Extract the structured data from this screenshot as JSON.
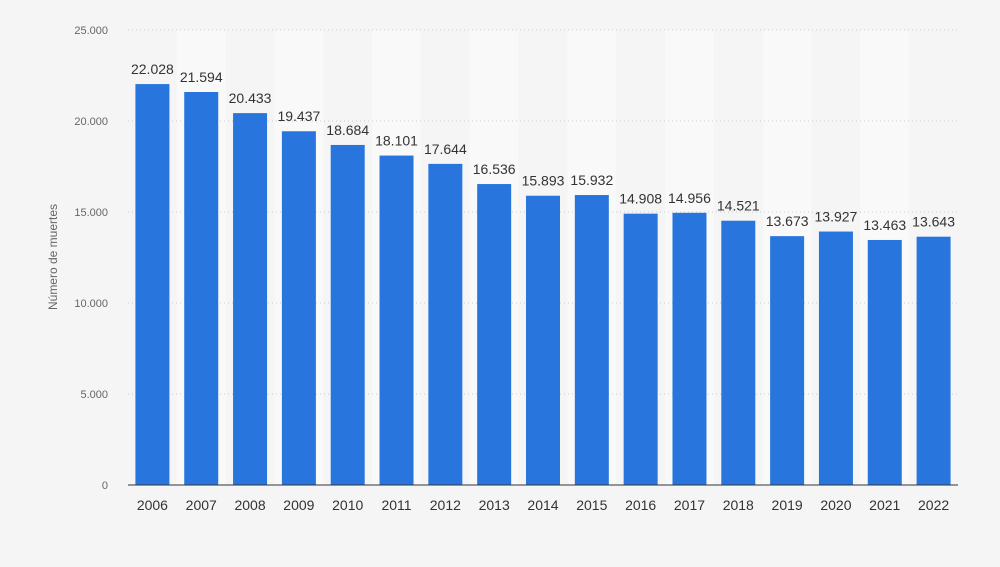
{
  "chart_data": {
    "type": "bar",
    "categories": [
      "2006",
      "2007",
      "2008",
      "2009",
      "2010",
      "2011",
      "2012",
      "2013",
      "2014",
      "2015",
      "2016",
      "2017",
      "2018",
      "2019",
      "2020",
      "2021",
      "2022"
    ],
    "values": [
      22028,
      21594,
      20433,
      19437,
      18684,
      18101,
      17644,
      16536,
      15893,
      15932,
      14908,
      14956,
      14521,
      13673,
      13927,
      13463,
      13643
    ],
    "value_labels": [
      "22.028",
      "21.594",
      "20.433",
      "19.437",
      "18.684",
      "18.101",
      "17.644",
      "16.536",
      "15.893",
      "15.932",
      "14.908",
      "14.956",
      "14.521",
      "13.673",
      "13.927",
      "13.463",
      "13.643"
    ],
    "title": "",
    "xlabel": "",
    "ylabel": "Número de muertes",
    "ylim": [
      0,
      25000
    ],
    "yticks": [
      0,
      5000,
      10000,
      15000,
      20000,
      25000
    ],
    "ytick_labels": [
      "0",
      "5.000",
      "10.000",
      "15.000",
      "20.000",
      "25.000"
    ],
    "grid": true,
    "colors": {
      "bar": "#2876dd",
      "background": "#f5f5f5",
      "band": "#f9f9f9",
      "grid": "#cccccc",
      "axis": "#333333"
    }
  }
}
